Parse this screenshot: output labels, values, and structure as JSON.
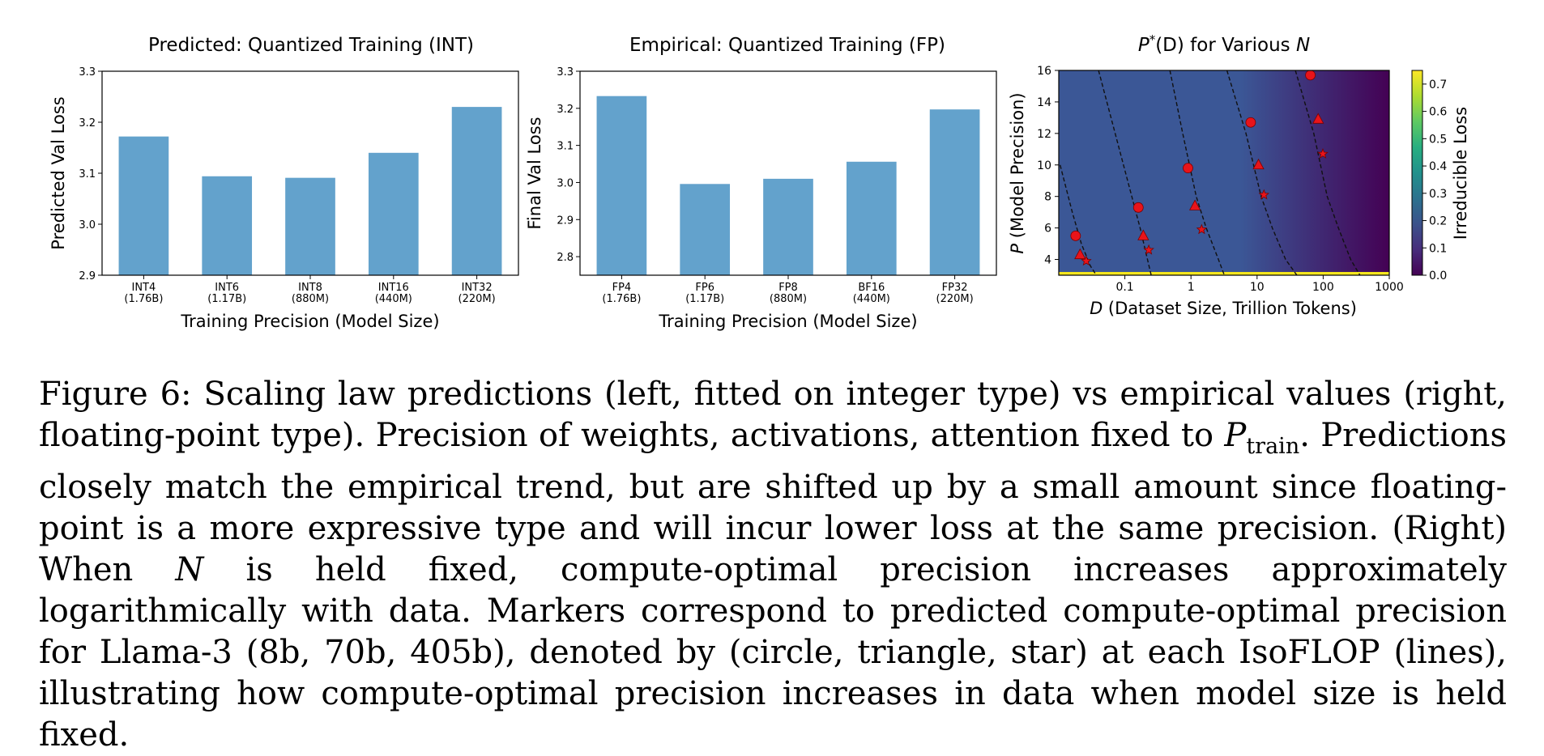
{
  "caption": {
    "label": "Figure 6:",
    "text_before": "Scaling law predictions (left, fitted on integer type) vs empirical values (right, floating-point type). Precision of weights, activations, attention fixed to",
    "symbol_main": "P",
    "symbol_sub": "train",
    "text_middle": ". Predictions closely match the empirical trend, but are shifted up by a small amount since floating-point is a more expressive type and will incur lower loss at the same precision. (Right) When",
    "symbol_n": "N",
    "text_after": "is held fixed, compute-optimal precision increases approximately logarithmically with data. Markers correspond to predicted compute-optimal precision for Llama-3 (8b, 70b, 405b), denoted by (circle, triangle, star) at each IsoFLOP (lines), illustrating how compute-optimal precision increases in data when model size is held fixed."
  },
  "colors": {
    "bar": "#63a2cc",
    "heat_left": "#3b5796",
    "heat_right": "#440154",
    "marker": "#e8141a",
    "yellow": "#f4e61e",
    "cbar_stops": [
      "#440154",
      "#472d7b",
      "#3b528b",
      "#2c728e",
      "#21918c",
      "#28ae80",
      "#5ec962",
      "#addc30",
      "#fde725"
    ]
  },
  "chart_data": [
    {
      "type": "bar",
      "title": "Predicted: Quantized Training (INT)",
      "xlabel": "Training Precision (Model Size)",
      "ylabel": "Predicted Val Loss",
      "categories": [
        [
          "INT4",
          "(1.76B)"
        ],
        [
          "INT6",
          "(1.17B)"
        ],
        [
          "INT8",
          "(880M)"
        ],
        [
          "INT16",
          "(440M)"
        ],
        [
          "INT32",
          "(220M)"
        ]
      ],
      "values": [
        3.172,
        3.094,
        3.091,
        3.14,
        3.23
      ],
      "ylim": [
        2.9,
        3.3
      ],
      "yticks": [
        "2.9",
        "3.0",
        "3.1",
        "3.2",
        "3.3"
      ]
    },
    {
      "type": "bar",
      "title": "Empirical: Quantized Training (FP)",
      "xlabel": "Training Precision (Model Size)",
      "ylabel": "Final Val Loss",
      "categories": [
        [
          "FP4",
          "(1.76B)"
        ],
        [
          "FP6",
          "(1.17B)"
        ],
        [
          "FP8",
          "(880M)"
        ],
        [
          "BF16",
          "(440M)"
        ],
        [
          "FP32",
          "(220M)"
        ]
      ],
      "values": [
        3.233,
        2.996,
        3.01,
        3.056,
        3.197
      ],
      "ylim": [
        2.75,
        3.3
      ],
      "yticks": [
        "2.8",
        "2.9",
        "3.0",
        "3.1",
        "3.2",
        "3.3"
      ]
    },
    {
      "type": "heatmap",
      "title_main": "P",
      "title_sup": "*",
      "title_rest": "(D) for Various ",
      "title_n": "N",
      "xlabel_var": "D",
      "xlabel": " (Dataset Size, Trillion Tokens)",
      "ylabel_var": "P",
      "ylabel": " (Model Precision)",
      "xscale": "log",
      "xlim": [
        0.01,
        1000
      ],
      "ylim": [
        3,
        16
      ],
      "xticks": [
        "0.1",
        "1",
        "10",
        "100",
        "1000"
      ],
      "yticks": [
        "4",
        "6",
        "8",
        "10",
        "12",
        "14",
        "16"
      ],
      "colorbar_label": "Irreducible Loss",
      "colorbar_range": [
        0.0,
        0.75
      ],
      "colorbar_ticks": [
        "0.0",
        "0.1",
        "0.2",
        "0.3",
        "0.4",
        "0.5",
        "0.6",
        "0.7"
      ],
      "isoflops": [
        {
          "points": [
            [
              0.0105,
              10
            ],
            [
              0.016,
              7
            ],
            [
              0.022,
              5
            ],
            [
              0.03,
              3.6
            ],
            [
              0.037,
              3
            ]
          ]
        },
        {
          "points": [
            [
              0.04,
              16
            ],
            [
              0.11,
              9
            ],
            [
              0.17,
              6
            ],
            [
              0.22,
              4
            ],
            [
              0.25,
              3
            ]
          ]
        },
        {
          "points": [
            [
              0.48,
              16
            ],
            [
              0.75,
              12
            ],
            [
              1.2,
              8
            ],
            [
              1.7,
              6
            ],
            [
              2.6,
              4
            ],
            [
              3.2,
              3
            ]
          ]
        },
        {
          "points": [
            [
              3.5,
              16
            ],
            [
              6.8,
              12
            ],
            [
              11.5,
              8
            ],
            [
              17,
              6
            ],
            [
              27,
              4
            ],
            [
              40,
              3
            ]
          ]
        },
        {
          "points": [
            [
              38,
              16
            ],
            [
              72,
              12
            ],
            [
              115,
              8
            ],
            [
              170,
              6
            ],
            [
              260,
              4
            ],
            [
              360,
              3
            ]
          ]
        }
      ],
      "markers": {
        "circle": [
          [
            0.018,
            5.5
          ],
          [
            0.16,
            7.3
          ],
          [
            0.9,
            9.8
          ],
          [
            8,
            12.7
          ],
          [
            64,
            15.7
          ]
        ],
        "triangle": [
          [
            0.021,
            4.3
          ],
          [
            0.19,
            5.5
          ],
          [
            1.15,
            7.4
          ],
          [
            10.5,
            10
          ],
          [
            84,
            12.9
          ]
        ],
        "star": [
          [
            0.026,
            3.9
          ],
          [
            0.23,
            4.6
          ],
          [
            1.45,
            5.9
          ],
          [
            12.7,
            8.1
          ],
          [
            99,
            10.7
          ]
        ]
      }
    }
  ]
}
